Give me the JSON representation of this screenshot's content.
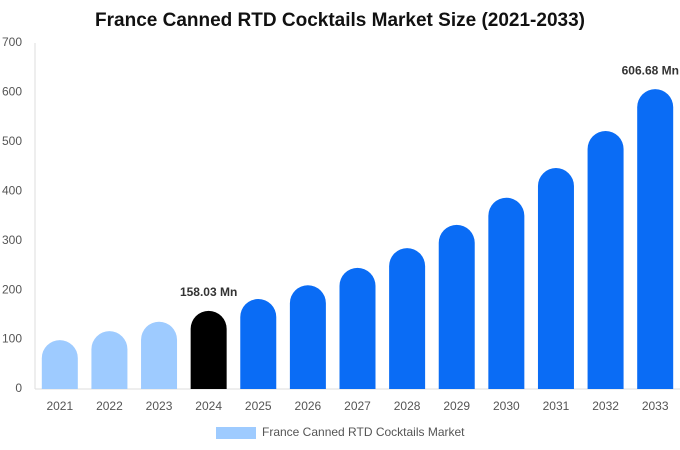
{
  "chart_data": {
    "type": "bar",
    "title": "France Canned RTD Cocktails Market Size (2021-2033)",
    "categories": [
      "2021",
      "2022",
      "2023",
      "2024",
      "2025",
      "2026",
      "2027",
      "2028",
      "2029",
      "2030",
      "2031",
      "2032",
      "2033"
    ],
    "series": [
      {
        "name": "France Canned RTD Cocktails Market",
        "color": "#9ecbff",
        "values": [
          99,
          117,
          136,
          158.03,
          182,
          210,
          245,
          285,
          332,
          387,
          447,
          522,
          606.68
        ],
        "value_labels": [
          null,
          null,
          null,
          "158.03 Mn",
          null,
          null,
          null,
          null,
          null,
          null,
          null,
          null,
          "606.68 Mn"
        ],
        "colors": [
          "#9ecbff",
          "#9ecbff",
          "#9ecbff",
          "#000000",
          "#0a6cf5",
          "#0a6cf5",
          "#0a6cf5",
          "#0a6cf5",
          "#0a6cf5",
          "#0a6cf5",
          "#0a6cf5",
          "#0a6cf5",
          "#0a6cf5"
        ]
      }
    ],
    "ylim": [
      0,
      700
    ],
    "yticks": [
      0,
      100,
      200,
      300,
      400,
      500,
      600,
      700
    ]
  }
}
